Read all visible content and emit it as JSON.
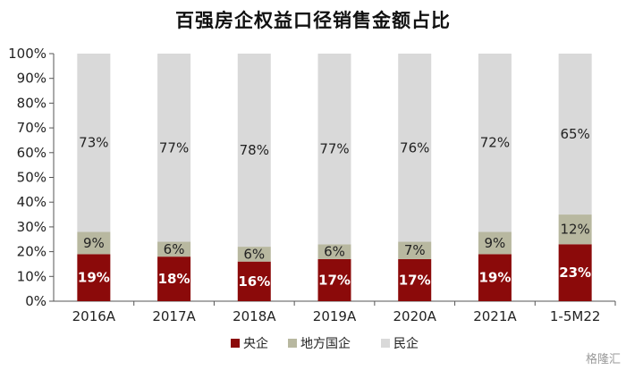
{
  "chart_data": {
    "type": "bar",
    "stacked": true,
    "title": "百强房企权益口径销售金额占比",
    "categories": [
      "2016A",
      "2017A",
      "2018A",
      "2019A",
      "2020A",
      "2021A",
      "1-5M22"
    ],
    "series": [
      {
        "name": "央企",
        "values": [
          19,
          18,
          16,
          17,
          17,
          19,
          23
        ],
        "labels": [
          "19%",
          "18%",
          "16%",
          "17%",
          "17%",
          "19%",
          "23%"
        ],
        "color": "#8b0a0a",
        "label_color": "#ffffff"
      },
      {
        "name": "地方国企",
        "values": [
          9,
          6,
          6,
          6,
          7,
          9,
          12
        ],
        "labels": [
          "9%",
          "6%",
          "6%",
          "6%",
          "7%",
          "9%",
          "12%"
        ],
        "color": "#b8b8a0",
        "label_color": "#222222"
      },
      {
        "name": "民企",
        "values": [
          73,
          77,
          78,
          77,
          76,
          72,
          65
        ],
        "labels": [
          "73%",
          "77%",
          "78%",
          "77%",
          "76%",
          "72%",
          "65%"
        ],
        "color": "#d9d9d9",
        "label_color": "#222222"
      }
    ],
    "ylim": [
      0,
      100
    ],
    "yticks": [
      "0%",
      "10%",
      "20%",
      "30%",
      "40%",
      "50%",
      "60%",
      "70%",
      "80%",
      "90%",
      "100%"
    ],
    "grid": false,
    "legend_position": "bottom"
  },
  "watermark": "格隆汇"
}
